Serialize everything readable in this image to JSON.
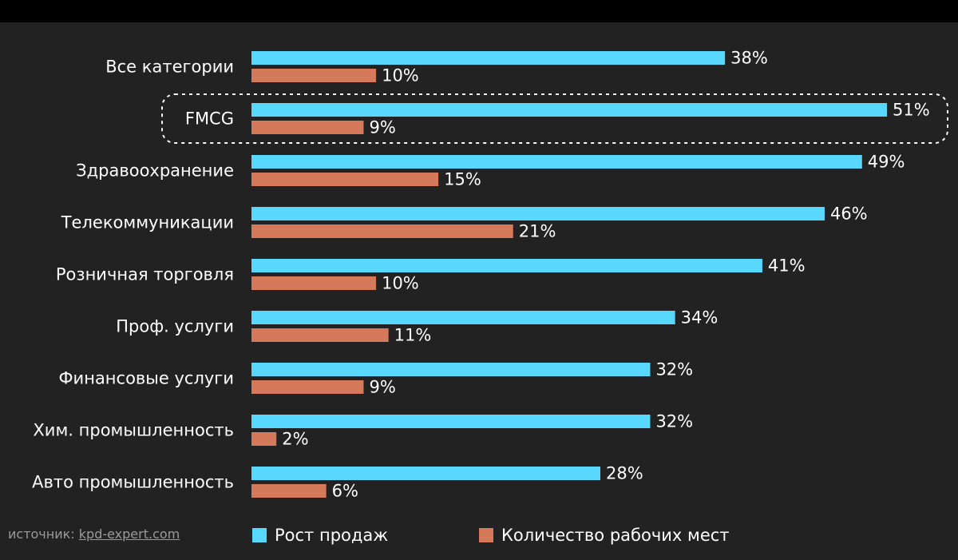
{
  "colors": {
    "background": "#222222",
    "sales_bar": "#58d7ff",
    "jobs_bar": "#d4795a",
    "text": "#ffffff",
    "muted": "#9a9a9a"
  },
  "chart_data": {
    "type": "bar",
    "orientation": "horizontal",
    "categories": [
      "Все категории",
      "FMCG",
      "Здравоохранение",
      "Телекоммуникации",
      "Розничная торговля",
      "Проф. услуги",
      "Финансовые услуги",
      "Хим. промышленность",
      "Авто промышленность"
    ],
    "series": [
      {
        "name": "Рост продаж",
        "values": [
          38,
          51,
          49,
          46,
          41,
          34,
          32,
          32,
          28
        ],
        "labels": [
          "38%",
          "51%",
          "49%",
          "46%",
          "41%",
          "34%",
          "32%",
          "32%",
          "28%"
        ]
      },
      {
        "name": "Количество рабочих мест",
        "values": [
          10,
          9,
          15,
          21,
          10,
          11,
          9,
          2,
          6
        ],
        "labels": [
          "10%",
          "9%",
          "15%",
          "21%",
          "10%",
          "11%",
          "9%",
          "2%",
          "6%"
        ]
      }
    ],
    "highlighted_category": "FMCG",
    "value_unit": "%",
    "xlim": [
      0,
      51
    ],
    "grid": false,
    "legend_position": "bottom"
  },
  "footer": {
    "source_prefix": "источник: ",
    "source_link": "kpd-expert.com"
  },
  "legend": {
    "sales_label": "Рост продаж",
    "jobs_label": "Количество рабочих мест"
  }
}
